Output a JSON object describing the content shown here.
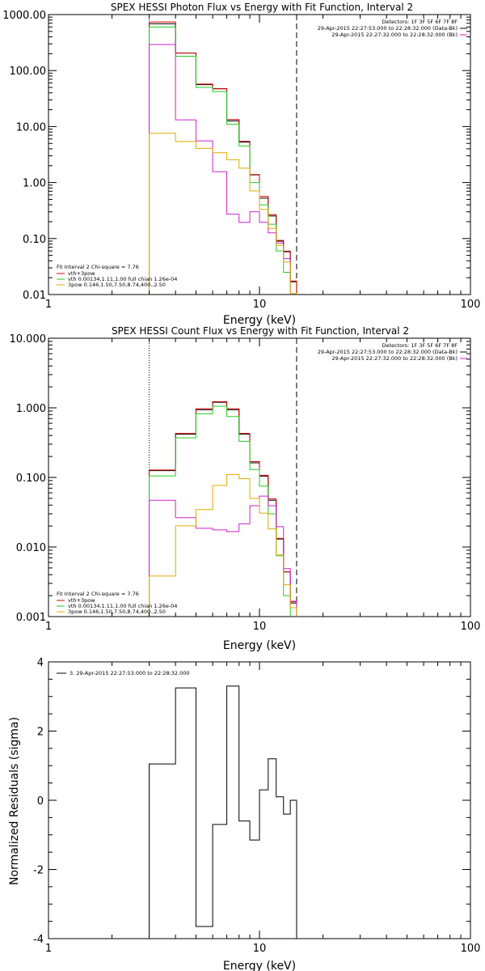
{
  "colors": {
    "black": "#000000",
    "red": "#d40000",
    "green": "#22cc22",
    "magenta": "#cc22cc",
    "yellow": "#ddaa00"
  },
  "chart_data": [
    {
      "type": "line",
      "title": "SPEX HESSI Photon Flux vs Energy with Fit Function, Interval 2",
      "xlabel": "Energy (keV)",
      "ylabel": "",
      "xscale": "log",
      "yscale": "log",
      "xlim": [
        1,
        100
      ],
      "ylim": [
        0.01,
        1000
      ],
      "xticklabels": [
        "1",
        "10",
        "100"
      ],
      "yticklabels": [
        "0.01",
        "0.10",
        "1.00",
        "10.00",
        "100.00",
        "1000.00"
      ],
      "detectors_label": "Detectors: 1F 3F 5F 6F 7F 8F",
      "legend_top": [
        {
          "text": "29-Apr-2015 22:27:53.000 to 22:28:32.000 (Data-Bk)",
          "color": "#000000"
        },
        {
          "text": "29-Apr-2015 22:27:32.000 to 22:28:32.000 (Bk)",
          "color": "#cc22cc"
        }
      ],
      "fit_header": "Fit Interval 2   Chi-square = 7.76",
      "legend_bottom": [
        {
          "text": "vth+3pow",
          "color": "#d40000"
        },
        {
          "text": "vth 0.00134,1.11,1.00  full chian 1.26e-04",
          "color": "#22cc22"
        },
        {
          "text": "3pow 0.146,1.50,7.50,8.74,400.,2.50",
          "color": "#ddaa00"
        }
      ],
      "vlines": [
        {
          "x": 3.0,
          "style": "dotted"
        },
        {
          "x": 15.0,
          "style": "dashed"
        }
      ],
      "edges": [
        3,
        4,
        5,
        6,
        7,
        8,
        9,
        10,
        11,
        12,
        13,
        14,
        15,
        16,
        17
      ],
      "series": [
        {
          "color": "#000000",
          "values": [
            650,
            195,
            53,
            45,
            12,
            5.0,
            1.3,
            0.5,
            0.24,
            0.085,
            0.055,
            0.016,
            0.0
          ]
        },
        {
          "color": "#d40000",
          "values": [
            720,
            200,
            56,
            46,
            13,
            5.3,
            1.35,
            0.55,
            0.26,
            0.09,
            0.058,
            0.017,
            0.0
          ]
        },
        {
          "color": "#22cc22",
          "values": [
            600,
            180,
            50,
            42,
            11,
            4.5,
            1.0,
            0.4,
            0.18,
            0.06,
            0.025,
            0.0,
            0.0
          ]
        },
        {
          "color": "#cc22cc",
          "values": [
            300,
            13.5,
            5.7,
            1.6,
            0.28,
            0.2,
            0.31,
            0.2,
            0.13,
            0.085,
            0.045,
            0.0,
            0.0
          ]
        },
        {
          "color": "#ddaa00",
          "values": [
            8.0,
            5.7,
            4.3,
            3.6,
            2.7,
            1.9,
            0.75,
            0.35,
            0.16,
            0.08,
            0.04,
            0.011,
            0.0
          ]
        }
      ]
    },
    {
      "type": "line",
      "title": "SPEX HESSI Count Flux vs Energy with Fit Function, Interval 2",
      "xlabel": "Energy (keV)",
      "ylabel": "",
      "xscale": "log",
      "yscale": "log",
      "xlim": [
        1,
        100
      ],
      "ylim": [
        0.001,
        10
      ],
      "xticklabels": [
        "1",
        "10",
        "100"
      ],
      "yticklabels": [
        "0.001",
        "0.010",
        "0.100",
        "1.000",
        "10.000"
      ],
      "detectors_label": "Detectors: 1F 3F 5F 6F 7F 8F",
      "legend_top": [
        {
          "text": "29-Apr-2015 22:27:53.000 to 22:28:32.000 (Data-Bk)",
          "color": "#000000"
        },
        {
          "text": "29-Apr-2015 22:27:32.000 to 22:28:32.000 (Bk)",
          "color": "#cc22cc"
        }
      ],
      "fit_header": "Fit Interval 2   Chi-square = 7.76",
      "legend_bottom": [
        {
          "text": "vth+3pow",
          "color": "#d40000"
        },
        {
          "text": "vth 0.00134,1.11,1.00  full chian 1.26e-04",
          "color": "#22cc22"
        },
        {
          "text": "3pow 0.146,1.50,7.50,8.74,400.,2.50",
          "color": "#ddaa00"
        }
      ],
      "vlines": [
        {
          "x": 3.0,
          "style": "dotted"
        },
        {
          "x": 15.0,
          "style": "dashed"
        }
      ],
      "edges": [
        3,
        4,
        5,
        6,
        7,
        8,
        9,
        10,
        11,
        12,
        13,
        14,
        15,
        16,
        17
      ],
      "series": [
        {
          "color": "#000000",
          "values": [
            0.12,
            0.4,
            0.9,
            1.15,
            0.9,
            0.4,
            0.155,
            0.1,
            0.045,
            0.0125,
            0.0042,
            0.0015,
            0.0
          ]
        },
        {
          "color": "#d40000",
          "values": [
            0.125,
            0.42,
            0.95,
            1.2,
            0.95,
            0.42,
            0.165,
            0.105,
            0.048,
            0.013,
            0.0043,
            0.0016,
            0.0
          ]
        },
        {
          "color": "#22cc22",
          "values": [
            0.105,
            0.37,
            0.82,
            1.05,
            0.75,
            0.33,
            0.13,
            0.075,
            0.03,
            0.0075,
            0.002,
            0.0,
            0.0
          ]
        },
        {
          "color": "#cc22cc",
          "values": [
            0.048,
            0.027,
            0.019,
            0.018,
            0.017,
            0.022,
            0.04,
            0.055,
            0.04,
            0.02,
            0.005,
            0.0017,
            0.0
          ]
        },
        {
          "color": "#ddaa00",
          "values": [
            0.004,
            0.021,
            0.036,
            0.08,
            0.115,
            0.1,
            0.052,
            0.032,
            0.019,
            0.008,
            0.003,
            0.0014,
            0.0
          ]
        }
      ]
    },
    {
      "type": "line",
      "title": "",
      "xlabel": "Energy (keV)",
      "ylabel": "Normalized Residuals (sigma)",
      "xscale": "log",
      "yscale": "linear",
      "xlim": [
        1,
        100
      ],
      "ylim": [
        -4,
        4
      ],
      "xticklabels": [
        "1",
        "10",
        "100"
      ],
      "yticklabels": [
        "-4",
        "-2",
        "0",
        "2",
        "4"
      ],
      "legend": [
        {
          "text": "3. 29-Apr-2015 22:27:53.000 to 22:28:32.000",
          "color": "#000000"
        }
      ],
      "edges": [
        3,
        4,
        5,
        6,
        7,
        8,
        9,
        10,
        11,
        12,
        13,
        14,
        15
      ],
      "series": [
        {
          "color": "#000000",
          "values": [
            1.05,
            3.25,
            -3.65,
            -0.7,
            3.3,
            -0.6,
            -1.15,
            0.3,
            1.2,
            0.1,
            -0.4,
            0.0
          ]
        }
      ]
    }
  ]
}
